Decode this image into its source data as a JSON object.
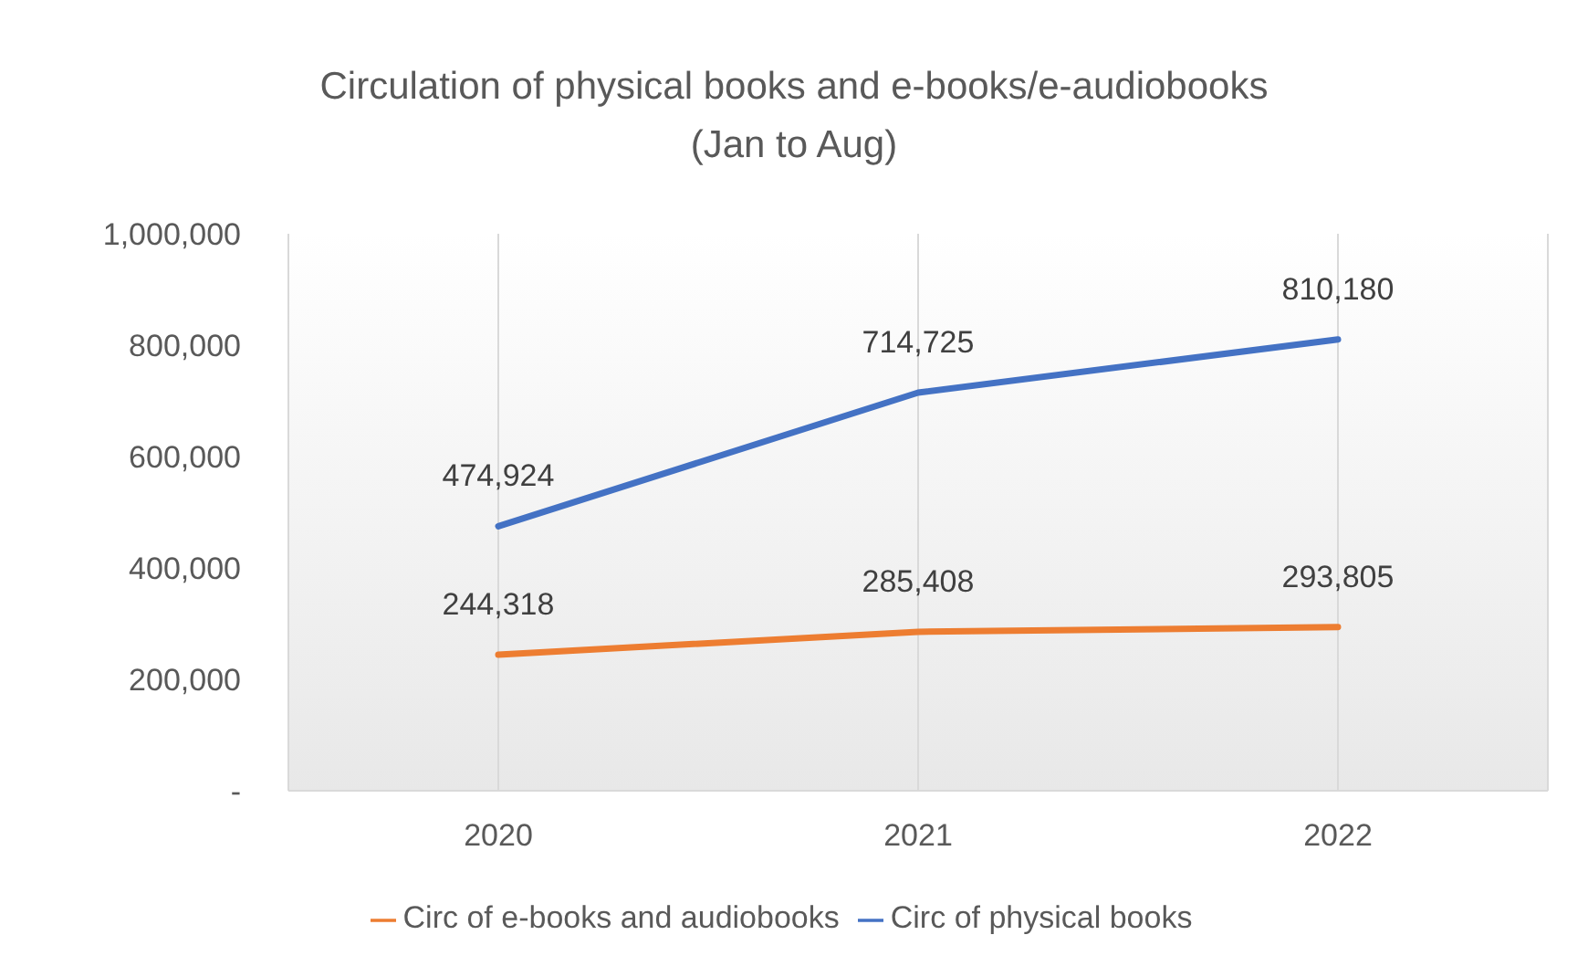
{
  "chart_data": {
    "type": "line",
    "title": "Circulation of physical books and e-books/e-audiobooks",
    "subtitle": "(Jan to Aug)",
    "categories": [
      "2020",
      "2021",
      "2022"
    ],
    "series": [
      {
        "name": "Circ of physical books",
        "color": "#4472c4",
        "values": [
          474924,
          714725,
          810180
        ],
        "value_labels": [
          "474,924",
          "714,725",
          "810,180"
        ]
      },
      {
        "name": "Circ of e-books and audiobooks",
        "color": "#ed7d31",
        "values": [
          244318,
          285408,
          293805
        ],
        "value_labels": [
          "244,318",
          "285,408",
          "293,805"
        ]
      }
    ],
    "ylim": [
      0,
      1000000
    ],
    "yticks": [
      {
        "value": 0,
        "label": "-"
      },
      {
        "value": 200000,
        "label": "200,000"
      },
      {
        "value": 400000,
        "label": "400,000"
      },
      {
        "value": 600000,
        "label": "600,000"
      },
      {
        "value": 800000,
        "label": "800,000"
      },
      {
        "value": 1000000,
        "label": "1,000,000"
      }
    ],
    "grid": "x",
    "legend": "bottom",
    "marker": "none",
    "line_style": "solid"
  }
}
